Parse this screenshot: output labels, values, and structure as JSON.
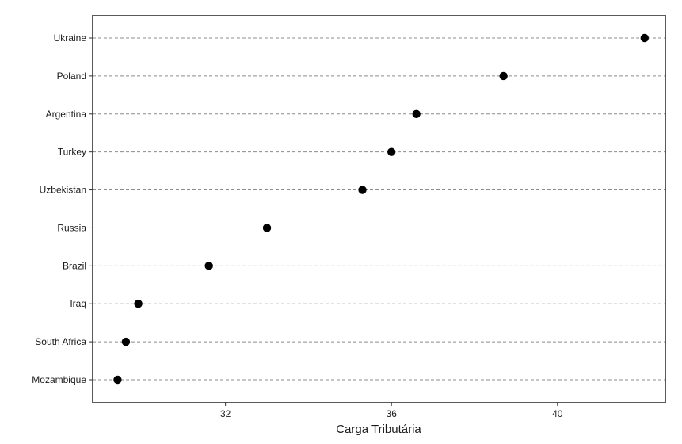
{
  "chart_data": {
    "type": "scatter",
    "title": "",
    "xlabel": "Carga Tributária",
    "ylabel": "",
    "xlim": [
      28.8,
      42.6
    ],
    "xticks": [
      32,
      36,
      40
    ],
    "grid": "horizontal dashed gridlines per category",
    "legend": "none",
    "categories": [
      "Ukraine",
      "Poland",
      "Argentina",
      "Turkey",
      "Uzbekistan",
      "Russia",
      "Brazil",
      "Iraq",
      "South Africa",
      "Mozambique"
    ],
    "values": [
      42.1,
      38.7,
      36.6,
      36.0,
      35.3,
      33.0,
      31.6,
      29.9,
      29.6,
      29.4
    ],
    "point_color": "#000000",
    "grid_color": "#8c8c8c"
  }
}
